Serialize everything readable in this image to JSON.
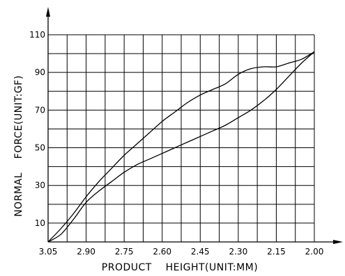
{
  "chart_data": {
    "type": "line",
    "xlabel": "PRODUCT    HEIGHT(UNIT:MM)",
    "ylabel": "NORMAL    FORCE(UNIT:GF)",
    "x_ticks": [
      "3.05",
      "2.90",
      "2.75",
      "2.60",
      "2.45",
      "2.30",
      "2.15",
      "2.00"
    ],
    "y_ticks": [
      "10",
      "30",
      "50",
      "70",
      "90",
      "110"
    ],
    "xlim": [
      3.05,
      2.0
    ],
    "ylim": [
      0,
      110
    ],
    "x_reversed": true,
    "grid": true,
    "series": [
      {
        "x": [
          3.05,
          3.0,
          2.95,
          2.9,
          2.85,
          2.8,
          2.75,
          2.7,
          2.65,
          2.6,
          2.55,
          2.5,
          2.45,
          2.4,
          2.35,
          2.3,
          2.25,
          2.2,
          2.15,
          2.1,
          2.05,
          2.0
        ],
        "y": [
          0,
          7,
          15,
          24,
          32,
          39,
          46,
          52,
          58,
          64,
          69,
          74,
          78,
          81,
          84,
          89,
          92,
          93,
          93,
          95,
          97,
          101
        ]
      },
      {
        "x": [
          3.05,
          3.0,
          2.95,
          2.9,
          2.85,
          2.8,
          2.75,
          2.7,
          2.65,
          2.6,
          2.55,
          2.5,
          2.45,
          2.4,
          2.35,
          2.3,
          2.25,
          2.2,
          2.15,
          2.1,
          2.05,
          2.0
        ],
        "y": [
          0,
          4,
          12,
          21,
          27,
          32,
          37,
          41,
          44,
          47,
          50,
          53,
          56,
          59,
          62,
          66,
          70,
          75,
          81,
          88,
          95,
          101
        ]
      }
    ]
  },
  "colors": {
    "line": "#000000",
    "grid": "#000000",
    "background": "#ffffff"
  }
}
